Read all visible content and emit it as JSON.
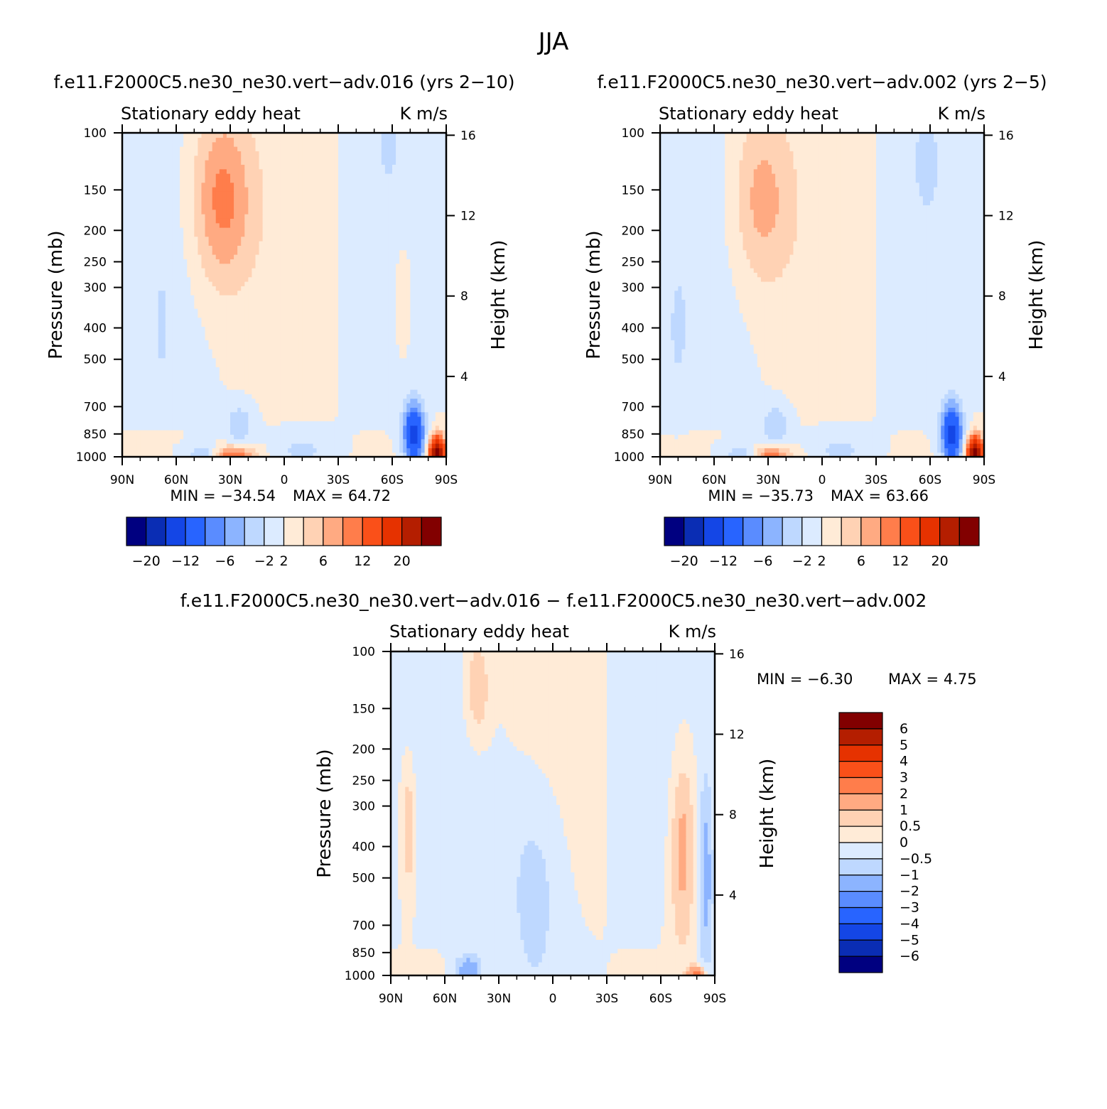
{
  "figure": {
    "title": "JJA"
  },
  "colors": {
    "panel_a_b": [
      "#000080",
      "#0a2db4",
      "#1446e6",
      "#2864ff",
      "#5a8cff",
      "#8cb4ff",
      "#bed8ff",
      "#dcebff",
      "#ffebd7",
      "#ffd2b4",
      "#ffaa82",
      "#ff7d4b",
      "#fa5019",
      "#e63200",
      "#b41e00",
      "#820000"
    ],
    "panel_c": [
      "#000080",
      "#0a2db4",
      "#1446e6",
      "#2864ff",
      "#5a8cff",
      "#8cb4ff",
      "#bed8ff",
      "#dcebff",
      "#ffebd7",
      "#ffd2b4",
      "#ffaa82",
      "#ff7d4b",
      "#fa5019",
      "#e63200",
      "#b41e00",
      "#820000"
    ]
  },
  "chart_data": [
    {
      "id": "panel_a",
      "type": "heatmap",
      "title": "f.e11.F2000C5.ne30_ne30.vert−adv.016 (yrs 2−10)",
      "left_string": "Stationary eddy heat",
      "right_string": "K m/s",
      "xlabel": "",
      "ylabel": "Pressure (mb)",
      "y2label": "Height (km)",
      "x_tick_labels": [
        "90N",
        "60N",
        "30N",
        "0",
        "30S",
        "60S",
        "90S"
      ],
      "x_tick_values": [
        90,
        60,
        30,
        0,
        -30,
        -60,
        -90
      ],
      "y_tick_labels": [
        "100",
        "150",
        "200",
        "250",
        "300",
        "400",
        "500",
        "700",
        "850",
        "1000"
      ],
      "y_tick_values": [
        100,
        150,
        200,
        250,
        300,
        400,
        500,
        700,
        850,
        1000
      ],
      "y2_tick_labels": [
        "16",
        "12",
        "8",
        "4"
      ],
      "y2_tick_values": [
        16,
        12,
        8,
        4
      ],
      "xlim": [
        90,
        -90
      ],
      "ylim": [
        1000,
        100
      ],
      "min_label": "MIN = −34.54",
      "max_label": "MAX =  64.72",
      "min": -34.54,
      "max": 64.72,
      "colorbar_labels": [
        "−20",
        "−12",
        "−6",
        "−2",
        "2",
        "6",
        "12",
        "20"
      ],
      "colorbar_levels": [
        -20,
        -16,
        -12,
        -8,
        -6,
        -4,
        -2,
        0,
        2,
        4,
        6,
        8,
        12,
        16,
        20
      ],
      "features": [
        {
          "lat": 35,
          "p": 160,
          "amp": 7,
          "wlat": 12,
          "wp": 0.45
        },
        {
          "lat": 30,
          "p": 990,
          "amp": 10,
          "wlat": 9,
          "wp": 0.05
        },
        {
          "lat": 42,
          "p": 985,
          "amp": -6,
          "wlat": 8,
          "wp": 0.05
        },
        {
          "lat": 25,
          "p": 800,
          "amp": -4,
          "wlat": 5,
          "wp": 0.1
        },
        {
          "lat": -72,
          "p": 850,
          "amp": -14,
          "wlat": 4,
          "wp": 0.15
        },
        {
          "lat": -85,
          "p": 960,
          "amp": 22,
          "wlat": 3,
          "wp": 0.08
        },
        {
          "lat": -66,
          "p": 320,
          "amp": 3,
          "wlat": 3,
          "wp": 0.25
        },
        {
          "lat": -58,
          "p": 110,
          "amp": -3,
          "wlat": 3,
          "wp": 0.12
        },
        {
          "lat": 68,
          "p": 400,
          "amp": -3,
          "wlat": 2,
          "wp": 0.2
        },
        {
          "lat": -10,
          "p": 950,
          "amp": -2.5,
          "wlat": 10,
          "wp": 0.08
        }
      ]
    },
    {
      "id": "panel_b",
      "type": "heatmap",
      "title": "f.e11.F2000C5.ne30_ne30.vert−adv.002 (yrs 2−5)",
      "left_string": "Stationary eddy heat",
      "right_string": "K m/s",
      "xlabel": "",
      "ylabel": "Pressure (mb)",
      "y2label": "Height (km)",
      "x_tick_labels": [
        "90N",
        "60N",
        "30N",
        "0",
        "30S",
        "60S",
        "90S"
      ],
      "x_tick_values": [
        90,
        60,
        30,
        0,
        -30,
        -60,
        -90
      ],
      "y_tick_labels": [
        "100",
        "150",
        "200",
        "250",
        "300",
        "400",
        "500",
        "700",
        "850",
        "1000"
      ],
      "y_tick_values": [
        100,
        150,
        200,
        250,
        300,
        400,
        500,
        700,
        850,
        1000
      ],
      "y2_tick_labels": [
        "16",
        "12",
        "8",
        "4"
      ],
      "y2_tick_values": [
        16,
        12,
        8,
        4
      ],
      "xlim": [
        90,
        -90
      ],
      "ylim": [
        1000,
        100
      ],
      "min_label": "MIN = −35.73",
      "max_label": "MAX =  63.66",
      "min": -35.73,
      "max": 63.66,
      "colorbar_labels": [
        "−20",
        "−12",
        "−6",
        "−2",
        "2",
        "6",
        "12",
        "20"
      ],
      "colorbar_levels": [
        -20,
        -16,
        -12,
        -8,
        -6,
        -4,
        -2,
        0,
        2,
        4,
        6,
        8,
        12,
        16,
        20
      ],
      "features": [
        {
          "lat": 34,
          "p": 160,
          "amp": 5,
          "wlat": 12,
          "wp": 0.45
        },
        {
          "lat": 30,
          "p": 990,
          "amp": 9,
          "wlat": 9,
          "wp": 0.05
        },
        {
          "lat": 42,
          "p": 985,
          "amp": -6,
          "wlat": 8,
          "wp": 0.05
        },
        {
          "lat": 26,
          "p": 800,
          "amp": -4,
          "wlat": 5,
          "wp": 0.1
        },
        {
          "lat": -72,
          "p": 850,
          "amp": -14,
          "wlat": 4,
          "wp": 0.15
        },
        {
          "lat": -85,
          "p": 960,
          "amp": 22,
          "wlat": 3,
          "wp": 0.08
        },
        {
          "lat": -58,
          "p": 120,
          "amp": -3,
          "wlat": 4,
          "wp": 0.2
        },
        {
          "lat": 80,
          "p": 400,
          "amp": -3,
          "wlat": 3,
          "wp": 0.25
        },
        {
          "lat": -10,
          "p": 950,
          "amp": -2.5,
          "wlat": 10,
          "wp": 0.08
        }
      ]
    },
    {
      "id": "panel_c",
      "type": "heatmap",
      "title": "f.e11.F2000C5.ne30_ne30.vert−adv.016 − f.e11.F2000C5.ne30_ne30.vert−adv.002",
      "left_string": "Stationary eddy heat",
      "right_string": "K m/s",
      "xlabel": "",
      "ylabel": "Pressure (mb)",
      "y2label": "Height (km)",
      "x_tick_labels": [
        "90N",
        "60N",
        "30N",
        "0",
        "30S",
        "60S",
        "90S"
      ],
      "x_tick_values": [
        90,
        60,
        30,
        0,
        -30,
        -60,
        -90
      ],
      "y_tick_labels": [
        "100",
        "150",
        "200",
        "250",
        "300",
        "400",
        "500",
        "700",
        "850",
        "1000"
      ],
      "y_tick_values": [
        100,
        150,
        200,
        250,
        300,
        400,
        500,
        700,
        850,
        1000
      ],
      "y2_tick_labels": [
        "16",
        "12",
        "8",
        "4"
      ],
      "y2_tick_values": [
        16,
        12,
        8,
        4
      ],
      "xlim": [
        90,
        -90
      ],
      "ylim": [
        1000,
        100
      ],
      "min_label": "MIN =   −6.30",
      "max_label": "MAX =    4.75",
      "min": -6.3,
      "max": 4.75,
      "colorbar_labels": [
        "6",
        "5",
        "4",
        "3",
        "2",
        "1",
        "0.5",
        "0",
        "−0.5",
        "−1",
        "−2",
        "−3",
        "−4",
        "−5",
        "−6"
      ],
      "colorbar_levels": [
        -6,
        -5,
        -4,
        -3,
        -2,
        -1,
        -0.5,
        0,
        0.5,
        1,
        2,
        3,
        4,
        5,
        6
      ],
      "features": [
        {
          "lat": -72,
          "p": 400,
          "amp": 1.4,
          "wlat": 5,
          "wp": 0.5
        },
        {
          "lat": -85,
          "p": 500,
          "amp": -1.3,
          "wlat": 3,
          "wp": 0.5
        },
        {
          "lat": 80,
          "p": 350,
          "amp": 1.1,
          "wlat": 2.5,
          "wp": 0.3
        },
        {
          "lat": 42,
          "p": 130,
          "amp": 1.1,
          "wlat": 5,
          "wp": 0.25
        },
        {
          "lat": 47,
          "p": 960,
          "amp": -1.6,
          "wlat": 5,
          "wp": 0.08
        },
        {
          "lat": -80,
          "p": 990,
          "amp": 3,
          "wlat": 3,
          "wp": 0.04
        },
        {
          "lat": 10,
          "p": 500,
          "amp": -0.8,
          "wlat": 12,
          "wp": 0.6
        }
      ]
    }
  ]
}
